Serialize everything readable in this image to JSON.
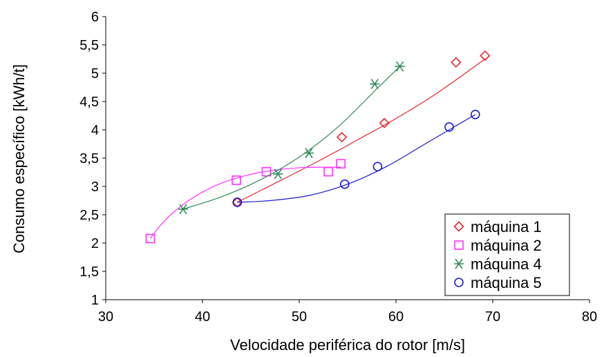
{
  "chart_data": {
    "type": "scatter",
    "title": "",
    "xlabel": "Velocidade periférica do rotor [m/s]",
    "ylabel": "Consumo específico [kWh/t]",
    "xlim": [
      30,
      80
    ],
    "ylim": [
      1,
      6
    ],
    "xticks": [
      30,
      40,
      50,
      60,
      70,
      80
    ],
    "yticks": [
      1,
      1.5,
      2,
      2.5,
      3,
      3.5,
      4,
      4.5,
      5,
      5.5,
      6
    ],
    "xtick_labels": [
      "30",
      "40",
      "50",
      "60",
      "70",
      "80"
    ],
    "ytick_labels": [
      "1",
      "1,5",
      "2",
      "2,5",
      "3",
      "3,5",
      "4",
      "4,5",
      "5",
      "5,5",
      "6"
    ],
    "grid": false,
    "legend_position": "bottom-right",
    "series": [
      {
        "name": "máquina 1",
        "marker": "diamond",
        "color": "#e8252a",
        "x": [
          43.6,
          54.4,
          58.8,
          66.2,
          69.2
        ],
        "y": [
          2.72,
          3.87,
          4.12,
          5.19,
          5.31
        ],
        "fit_x": [
          43.6,
          48,
          52,
          56,
          60,
          64,
          69.2
        ],
        "fit_y": [
          2.72,
          3.1,
          3.45,
          3.82,
          4.2,
          4.62,
          5.25
        ]
      },
      {
        "name": "máquina 2",
        "marker": "square",
        "color": "#ff33ff",
        "x": [
          34.6,
          43.5,
          46.6,
          53.0,
          54.3
        ],
        "y": [
          2.08,
          3.11,
          3.26,
          3.26,
          3.4
        ],
        "fit_x": [
          34.6,
          36,
          38,
          40,
          42,
          44,
          46,
          48,
          50,
          52,
          54.3
        ],
        "fit_y": [
          2.08,
          2.38,
          2.68,
          2.9,
          3.06,
          3.17,
          3.25,
          3.3,
          3.33,
          3.34,
          3.34
        ]
      },
      {
        "name": "máquina 4",
        "marker": "asterisk",
        "color": "#2e8b57",
        "x": [
          38.0,
          47.8,
          51.0,
          57.8,
          60.4
        ],
        "y": [
          2.6,
          3.22,
          3.59,
          4.81,
          5.12
        ],
        "fit_x": [
          38.0,
          42,
          46,
          50,
          54,
          58,
          60.4
        ],
        "fit_y": [
          2.6,
          2.82,
          3.12,
          3.52,
          4.05,
          4.72,
          5.12
        ]
      },
      {
        "name": "máquina 5",
        "marker": "circle",
        "color": "#1a1acc",
        "x": [
          43.6,
          54.7,
          58.1,
          65.5,
          68.2
        ],
        "y": [
          2.72,
          3.04,
          3.35,
          4.05,
          4.27
        ],
        "fit_x": [
          43.6,
          47,
          51,
          55,
          59,
          63,
          66,
          68.2
        ],
        "fit_y": [
          2.72,
          2.75,
          2.84,
          3.04,
          3.35,
          3.75,
          4.05,
          4.27
        ]
      }
    ]
  }
}
